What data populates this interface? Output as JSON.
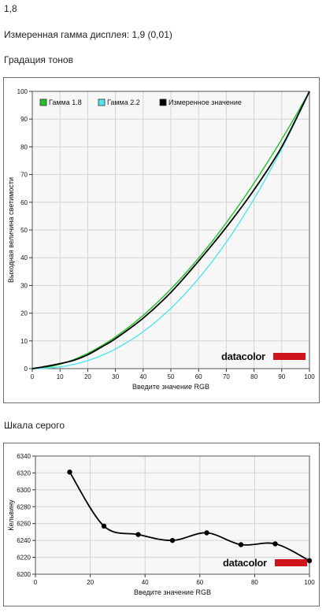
{
  "header": {
    "gamma_value": "1,8",
    "measured_gamma": "Измеренная гамма дисплея: 1,9 (0,01)",
    "tone_title": "Градация тонов",
    "gray_title": "Шкала серого"
  },
  "brand": {
    "logo_text": "datacolor",
    "bar_color": "#d0141e"
  },
  "chart_data": [
    {
      "type": "line",
      "xlabel": "Введите значение RGB",
      "ylabel": "Выходная величина светимости",
      "xlim": [
        0,
        100
      ],
      "ylim": [
        0,
        100
      ],
      "x_ticks": [
        0,
        10,
        20,
        30,
        40,
        50,
        60,
        70,
        80,
        90,
        100
      ],
      "y_ticks": [
        0,
        10,
        20,
        30,
        40,
        50,
        60,
        70,
        80,
        90,
        100
      ],
      "grid": true,
      "legend_position": "top",
      "series": [
        {
          "name": "Гамма 1.8",
          "color": "#22c02a",
          "gamma": 1.8
        },
        {
          "name": "Гамма 2.2",
          "color": "#50e6f0",
          "gamma": 2.2
        },
        {
          "name": "Измеренное значение",
          "color": "#000000",
          "x": [
            0,
            5,
            10,
            15,
            20,
            25,
            30,
            40,
            50,
            60,
            70,
            80,
            90,
            100
          ],
          "y": [
            0,
            0.8,
            1.8,
            3.0,
            5.0,
            7.8,
            10.8,
            18.2,
            27.5,
            38.8,
            51.0,
            64.5,
            80.0,
            100
          ]
        }
      ]
    },
    {
      "type": "line",
      "xlabel": "Введите значение RGB",
      "ylabel": "Кельвину",
      "xlim": [
        0,
        100
      ],
      "ylim": [
        6200,
        6340
      ],
      "x_ticks": [
        0,
        20,
        40,
        60,
        80,
        100
      ],
      "y_ticks": [
        6200,
        6220,
        6240,
        6260,
        6280,
        6300,
        6320,
        6340
      ],
      "grid": true,
      "series": [
        {
          "color": "#000000",
          "x": [
            12.5,
            25,
            37.5,
            50,
            62.5,
            75,
            87.5,
            100
          ],
          "y": [
            6321,
            6257,
            6247,
            6240,
            6249,
            6235,
            6236,
            6216
          ]
        }
      ]
    }
  ]
}
